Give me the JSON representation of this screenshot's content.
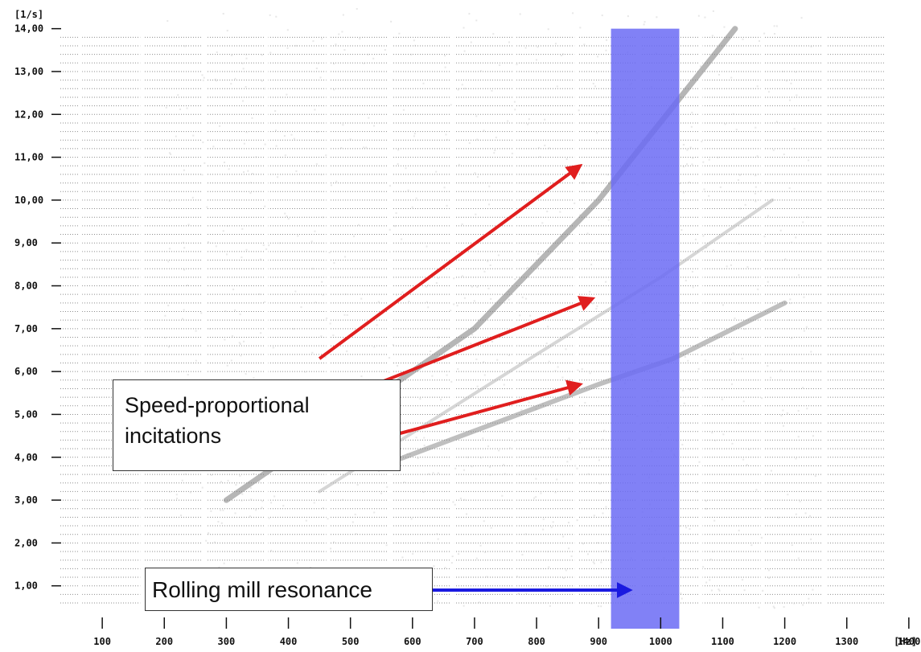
{
  "chart_data": {
    "type": "heatmap",
    "title": "",
    "xlabel": "",
    "ylabel": "",
    "x_unit": "[Hz]",
    "y_unit": "[1/s]",
    "xlim": [
      0,
      1500
    ],
    "ylim": [
      0,
      14.5
    ],
    "x_ticks": [
      100,
      200,
      300,
      400,
      500,
      600,
      700,
      800,
      900,
      1000,
      1100,
      1200,
      1300,
      1400
    ],
    "x_tick_labels": [
      "100",
      "200",
      "300",
      "400",
      "500",
      "600",
      "700",
      "800",
      "900",
      "1000",
      "1100",
      "1200",
      "1300",
      "1400"
    ],
    "y_ticks": [
      1,
      2,
      3,
      4,
      5,
      6,
      7,
      8,
      9,
      10,
      11,
      12,
      13,
      14
    ],
    "y_tick_labels": [
      "1,00",
      "2,00",
      "3,00",
      "4,00",
      "5,00",
      "6,00",
      "7,00",
      "8,00",
      "9,00",
      "10,00",
      "11,00",
      "12,00",
      "13,00",
      "14,00"
    ],
    "grid": true,
    "highlight_band": {
      "x_range": [
        920,
        1030
      ],
      "y_range": [
        0,
        14
      ],
      "color": "#6b6bf5",
      "label": "Rolling mill resonance"
    },
    "order_lines": [
      {
        "points": [
          [
            300,
            3.0
          ],
          [
            700,
            7.0
          ],
          [
            900,
            10.0
          ],
          [
            1120,
            14.0
          ]
        ],
        "strength": "strong"
      },
      {
        "points": [
          [
            450,
            3.2
          ],
          [
            800,
            6.4
          ],
          [
            1000,
            8.2
          ],
          [
            1180,
            10.0
          ]
        ],
        "strength": "weak"
      },
      {
        "points": [
          [
            550,
            3.8
          ],
          [
            900,
            5.7
          ],
          [
            1020,
            6.3
          ],
          [
            1200,
            7.6
          ]
        ],
        "strength": "medium"
      }
    ],
    "annotations": [
      {
        "text": "Speed-proportional incitations",
        "color": "#e01e1e",
        "arrows": [
          {
            "from": [
              450,
              6.3
            ],
            "to": [
              870,
              10.8
            ]
          },
          {
            "from": [
              540,
              5.7
            ],
            "to": [
              890,
              7.7
            ]
          },
          {
            "from": [
              540,
              4.4
            ],
            "to": [
              870,
              5.7
            ]
          }
        ]
      },
      {
        "text": "Rolling mill resonance",
        "color": "#1a1ae0",
        "arrows": [
          {
            "from": [
              600,
              0.9
            ],
            "to": [
              950,
              0.9
            ]
          }
        ]
      }
    ]
  },
  "notes": {
    "speed_line1": "Speed-proportional",
    "speed_line2": "incitations",
    "resonance": "Rolling mill resonance"
  }
}
